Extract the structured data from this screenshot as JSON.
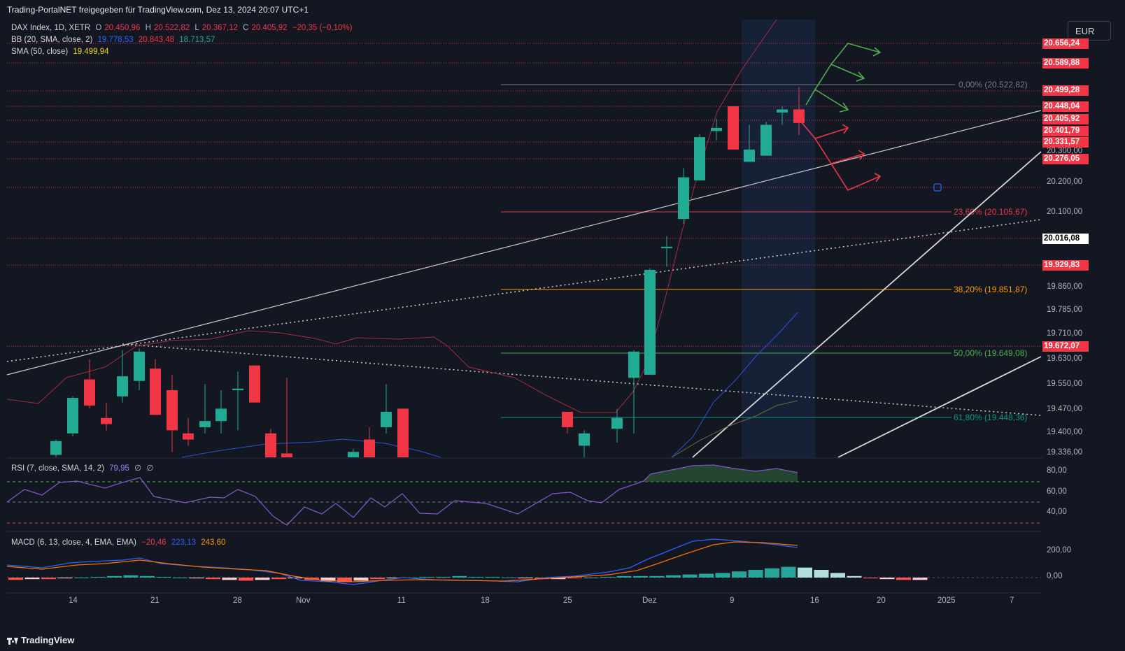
{
  "header": {
    "title": "Trading-PortalNET freigegeben für TradingView.com, Dez 13, 2024 20:07 UTC+1"
  },
  "currency_button": "EUR",
  "legend": {
    "main": {
      "label": "DAX Index, 1D, XETR",
      "o_lbl": "O",
      "o": "20.450,96",
      "h_lbl": "H",
      "h": "20.522,82",
      "l_lbl": "L",
      "l": "20.367,12",
      "c_lbl": "C",
      "c": "20.405,92",
      "chg": "−20,35 (−0,10%)"
    },
    "bb": {
      "label": "BB (20, SMA, close, 2)",
      "basis": "19.778,53",
      "upper": "20.843,48",
      "lower": "18.713,57"
    },
    "sma": {
      "label": "SMA (50, close)",
      "value": "19.499,94"
    },
    "rsi": {
      "label": "RSI (7, close, SMA, 14, 2)",
      "value": "79,95",
      "extra1": "∅",
      "extra2": "∅"
    },
    "macd": {
      "label": "MACD (6, 13, close, 4, EMA, EMA)",
      "hist": "−20,46",
      "macd": "223,13",
      "signal": "243,60"
    }
  },
  "price_labels": [
    {
      "text": "20.656,24",
      "style": "red"
    },
    {
      "text": "20.589,88",
      "style": "red"
    },
    {
      "text": "20.499,28",
      "style": "red"
    },
    {
      "text": "20.448,04",
      "style": "red"
    },
    {
      "text": "20.405,92",
      "style": "red"
    },
    {
      "text": "20.401,79",
      "style": "red"
    },
    {
      "text": "20.331,57",
      "style": "red"
    },
    {
      "text": "20.276,05",
      "style": "red"
    },
    {
      "text": "20.016,08",
      "style": "red"
    },
    {
      "text": "19.929,83",
      "style": "red"
    },
    {
      "text": "19.672,07",
      "style": "red"
    }
  ],
  "price_ticks": [
    "20.300,00",
    "20.200,00",
    "20.100,00",
    "19.860,00",
    "19.785,00",
    "19.710,00",
    "19.630,00",
    "19.550,00",
    "19.470,00",
    "19.400,00",
    "19.336,00"
  ],
  "rsi_ticks": [
    "80,00",
    "60,00",
    "40,00"
  ],
  "macd_ticks": [
    "200,00",
    "0,00"
  ],
  "x_ticks": [
    "14",
    "21",
    "28",
    "Nov",
    "11",
    "18",
    "25",
    "Dez",
    "9",
    "16",
    "20",
    "2025",
    "7"
  ],
  "fib_labels": [
    "0,00% (20.522,82)",
    "23,60% (20.105,67)",
    "38,20% (19.851,87)",
    "50,00% (19.649,08)",
    "61,80% (19.448,36)"
  ],
  "colors": {
    "up": "#22ab94",
    "down": "#f23645",
    "background": "#121722",
    "fib_0": "#787b86",
    "fib_236": "#f23645",
    "fib_382": "#ff9800",
    "fib_50": "#4caf50",
    "fib_618": "#089981"
  },
  "footer": {
    "brand": "TradingView"
  },
  "chart_data": {
    "type": "candlestick",
    "title": "DAX Index, 1D, XETR",
    "ylim": [
      19336,
      20680
    ],
    "candles": [
      {
        "o": 19330,
        "h": 19380,
        "l": 19250,
        "c": 19375
      },
      {
        "o": 19400,
        "h": 19520,
        "l": 19390,
        "c": 19515
      },
      {
        "o": 19575,
        "h": 19640,
        "l": 19480,
        "c": 19490
      },
      {
        "o": 19450,
        "h": 19500,
        "l": 19410,
        "c": 19430
      },
      {
        "o": 19520,
        "h": 19670,
        "l": 19500,
        "c": 19585
      },
      {
        "o": 19570,
        "h": 19675,
        "l": 19540,
        "c": 19665
      },
      {
        "o": 19610,
        "h": 19640,
        "l": 19460,
        "c": 19460
      },
      {
        "o": 19540,
        "h": 19590,
        "l": 19340,
        "c": 19410
      },
      {
        "o": 19400,
        "h": 19450,
        "l": 19360,
        "c": 19380
      },
      {
        "o": 19420,
        "h": 19560,
        "l": 19400,
        "c": 19440
      },
      {
        "o": 19440,
        "h": 19540,
        "l": 19400,
        "c": 19480
      },
      {
        "o": 19540,
        "h": 19600,
        "l": 19410,
        "c": 19545
      },
      {
        "o": 19620,
        "h": 19620,
        "l": 19500,
        "c": 19500
      },
      {
        "o": 19400,
        "h": 19415,
        "l": 19300,
        "c": 19320
      },
      {
        "o": 19335,
        "h": 19580,
        "l": 19300,
        "c": 19310
      },
      {
        "o": 19310,
        "h": 19350,
        "l": 19290,
        "c": 19340
      },
      {
        "o": 19380,
        "h": 19420,
        "l": 19310,
        "c": 19320
      },
      {
        "o": 19420,
        "h": 19560,
        "l": 19400,
        "c": 19470
      },
      {
        "o": 19480,
        "h": 19480,
        "l": 19280,
        "c": 19300
      },
      {
        "o": 19470,
        "h": 19470,
        "l": 19400,
        "c": 19420
      },
      {
        "o": 19360,
        "h": 19410,
        "l": 19300,
        "c": 19400
      },
      {
        "o": 19415,
        "h": 19480,
        "l": 19370,
        "c": 19450
      },
      {
        "o": 19580,
        "h": 19670,
        "l": 19400,
        "c": 19665
      },
      {
        "o": 19590,
        "h": 19935,
        "l": 19590,
        "c": 19930
      },
      {
        "o": 20000,
        "h": 20040,
        "l": 19940,
        "c": 20005
      },
      {
        "o": 20095,
        "h": 20260,
        "l": 20080,
        "c": 20230
      },
      {
        "o": 20220,
        "h": 20370,
        "l": 20220,
        "c": 20360
      },
      {
        "o": 20380,
        "h": 20420,
        "l": 20350,
        "c": 20390
      },
      {
        "o": 20460,
        "h": 20460,
        "l": 20320,
        "c": 20320
      },
      {
        "o": 20280,
        "h": 20400,
        "l": 20280,
        "c": 20320
      },
      {
        "o": 20300,
        "h": 20410,
        "l": 20300,
        "c": 20400
      },
      {
        "o": 20440,
        "h": 20460,
        "l": 20400,
        "c": 20450
      },
      {
        "o": 20450,
        "h": 20523,
        "l": 20367,
        "c": 20406
      }
    ]
  }
}
